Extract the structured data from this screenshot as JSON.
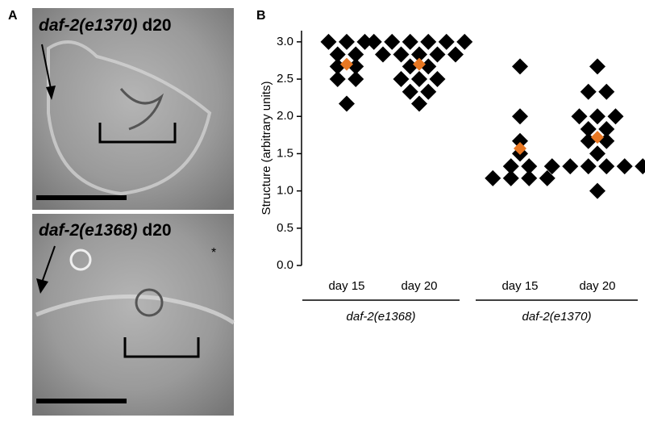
{
  "panel_labels": [
    "A",
    "B"
  ],
  "images": [
    {
      "genotype": "daf-2(e1370)",
      "day": "d20"
    },
    {
      "genotype": "daf-2(e1368)",
      "day": "d20",
      "mark": "*"
    }
  ],
  "chart_data": {
    "type": "strip",
    "ylabel": "Structure (arbitrary units)",
    "categories": [
      "day 15",
      "day 20",
      "day 15",
      "day 20"
    ],
    "groups": [
      {
        "label": "daf-2(e1368)",
        "span": [
          0,
          1
        ]
      },
      {
        "label": "daf-2(e1370)",
        "span": [
          2,
          3
        ]
      }
    ],
    "values": [
      [
        3.0,
        3.0,
        3.0,
        2.83,
        2.83,
        2.67,
        2.67,
        2.5,
        2.5,
        2.17
      ],
      [
        3.0,
        3.0,
        3.0,
        3.0,
        3.0,
        3.0,
        2.83,
        2.83,
        2.83,
        2.83,
        2.83,
        2.67,
        2.67,
        2.5,
        2.5,
        2.5,
        2.33,
        2.33,
        2.17
      ],
      [
        2.67,
        2.0,
        1.67,
        1.5,
        1.33,
        1.33,
        1.17,
        1.17,
        1.17,
        1.17
      ],
      [
        2.67,
        2.33,
        2.33,
        2.0,
        2.0,
        2.0,
        1.83,
        1.83,
        1.67,
        1.67,
        1.5,
        1.33,
        1.33,
        1.33,
        1.33,
        1.33,
        1.33,
        1.0
      ]
    ],
    "means": [
      2.7,
      2.7,
      1.57,
      1.72
    ],
    "color": "#000000",
    "mean_color": "#e87722",
    "ylim": [
      0,
      3.15
    ],
    "yticks": [
      {
        "value": 0,
        "label": "0.0"
      },
      {
        "value": 0.5,
        "label": "0.5"
      },
      {
        "value": 1,
        "label": "1.0"
      },
      {
        "value": 1.5,
        "label": "1.5"
      },
      {
        "value": 2,
        "label": "2.0"
      },
      {
        "value": 2.5,
        "label": "2.5"
      },
      {
        "value": 3,
        "label": "3.0"
      }
    ]
  }
}
